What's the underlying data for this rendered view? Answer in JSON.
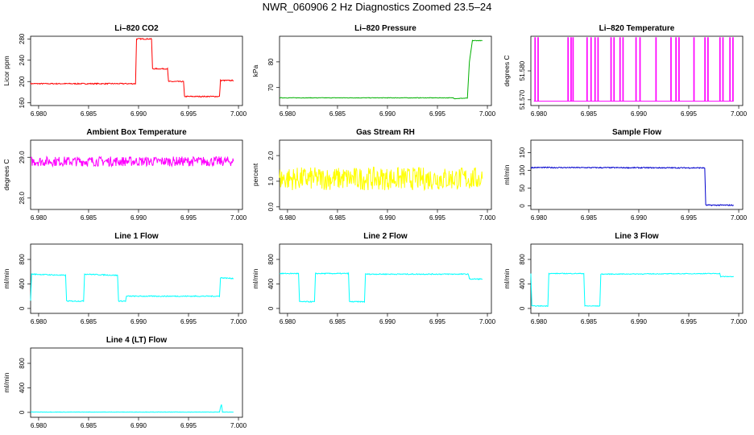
{
  "title": "NWR_060906  2 Hz Diagnostics Zoomed 23.5–24",
  "chart_data": [
    {
      "type": "line",
      "title": "Li–820 CO2",
      "ylabel": "Licor ppm",
      "color": "#ff0000",
      "xlim": [
        6.9792,
        7.0004
      ],
      "xticks": [
        "6.980",
        "6.985",
        "6.990",
        "6.995",
        "7.000"
      ],
      "ylim": [
        155,
        285
      ],
      "yticks": [
        "160",
        "200",
        "240",
        "280"
      ],
      "noise": 1,
      "series": [
        {
          "x": [
            6.9792,
            6.9897,
            6.9898,
            6.9913,
            6.9914,
            6.9929,
            6.993,
            6.9945,
            6.9946,
            6.9981,
            6.9982,
            6.9995
          ],
          "values": [
            196,
            196,
            280,
            280,
            224,
            224,
            200,
            200,
            172,
            172,
            202,
            202
          ]
        }
      ]
    },
    {
      "type": "line",
      "title": "Li–820 Pressure",
      "ylabel": "kPa",
      "color": "#00b000",
      "xlim": [
        6.9792,
        7.0004
      ],
      "xticks": [
        "6.980",
        "6.985",
        "6.990",
        "6.995",
        "7.000"
      ],
      "ylim": [
        63,
        90
      ],
      "yticks": [
        "70",
        "80"
      ],
      "noise": 0.1,
      "series": [
        {
          "x": [
            6.9792,
            6.9966,
            6.9967,
            6.998,
            6.9982,
            6.9985,
            6.9995
          ],
          "values": [
            66,
            66,
            65.7,
            65.9,
            80,
            88.3,
            88.3
          ]
        }
      ]
    },
    {
      "type": "line",
      "title": "Li–820 Temperature",
      "ylabel": "degrees C",
      "color": "#ff00ff",
      "xlim": [
        6.9792,
        7.0004
      ],
      "xticks": [
        "6.980",
        "6.985",
        "6.990",
        "6.995",
        "7.000"
      ],
      "ylim": [
        51.568,
        51.592
      ],
      "yticks": [
        "51.570",
        "51.580"
      ],
      "tick_values": [
        51.57,
        51.58
      ],
      "noise": 0,
      "spikes": {
        "base": 51.5695,
        "top": 51.5915,
        "x": [
          6.9796,
          6.9799,
          6.9829,
          6.9832,
          6.9834,
          6.9848,
          6.9852,
          6.9856,
          6.9859,
          6.9872,
          6.9875,
          6.9881,
          6.9884,
          6.9897,
          6.9901,
          6.9917,
          6.9932,
          6.9937,
          6.994,
          6.9955,
          6.9966,
          6.9969,
          6.9981,
          6.9984,
          6.9991,
          6.9994
        ]
      }
    },
    {
      "type": "line",
      "title": "Ambient Box Temperature",
      "ylabel": "degrees C",
      "color": "#ff00ff",
      "xlim": [
        6.9792,
        7.0004
      ],
      "xticks": [
        "6.980",
        "6.985",
        "6.990",
        "6.995",
        "7.000"
      ],
      "ylim": [
        27.72,
        29.42
      ],
      "yticks": [
        "28.0",
        "29.0"
      ],
      "noise": 0.12,
      "series": [
        {
          "x": [
            6.9792,
            6.9995
          ],
          "values": [
            28.9,
            28.9
          ]
        }
      ]
    },
    {
      "type": "line",
      "title": "Gas Stream RH",
      "ylabel": "percent",
      "color": "#ffff00",
      "xlim": [
        6.9792,
        7.0004
      ],
      "xticks": [
        "6.980",
        "6.985",
        "6.990",
        "6.995",
        "7.000"
      ],
      "ylim": [
        -0.1,
        2.6
      ],
      "yticks": [
        "0.0",
        "1.0",
        "2.0"
      ],
      "noise": 0.45,
      "series": [
        {
          "x": [
            6.9792,
            6.9995
          ],
          "values": [
            1.1,
            1.1
          ]
        }
      ]
    },
    {
      "type": "line",
      "title": "Sample Flow",
      "ylabel": "ml/min",
      "color": "#0000cd",
      "xlim": [
        6.9792,
        7.0004
      ],
      "xticks": [
        "6.980",
        "6.985",
        "6.990",
        "6.995",
        "7.000"
      ],
      "ylim": [
        -10,
        185
      ],
      "yticks": [
        "0",
        "50",
        "100",
        "150"
      ],
      "noise": 1.5,
      "series": [
        {
          "x": [
            6.9792,
            6.9966,
            6.9967,
            6.9995
          ],
          "values": [
            108,
            107,
            2,
            2
          ]
        }
      ]
    },
    {
      "type": "line",
      "title": "Line 1 Flow",
      "ylabel": "ml/min",
      "color": "#00ffff",
      "xlim": [
        6.9792,
        7.0004
      ],
      "xticks": [
        "6.980",
        "6.985",
        "6.990",
        "6.995",
        "7.000"
      ],
      "ylim": [
        -80,
        1050
      ],
      "yticks": [
        "0",
        "400",
        "800"
      ],
      "noise": 8,
      "series": [
        {
          "x": [
            6.9792,
            6.9793,
            6.9827,
            6.9828,
            6.9845,
            6.9846,
            6.9879,
            6.988,
            6.9887,
            6.9888,
            6.9981,
            6.9982,
            6.9995
          ],
          "values": [
            120,
            560,
            540,
            120,
            120,
            560,
            540,
            120,
            120,
            200,
            200,
            500,
            490
          ]
        }
      ]
    },
    {
      "type": "line",
      "title": "Line 2 Flow",
      "ylabel": "ml/min",
      "color": "#00ffff",
      "xlim": [
        6.9792,
        7.0004
      ],
      "xticks": [
        "6.980",
        "6.985",
        "6.990",
        "6.995",
        "7.000"
      ],
      "ylim": [
        -80,
        1050
      ],
      "yticks": [
        "0",
        "400",
        "800"
      ],
      "noise": 8,
      "series": [
        {
          "x": [
            6.9792,
            6.9811,
            6.9812,
            6.9827,
            6.9828,
            6.9861,
            6.9862,
            6.9877,
            6.9878,
            6.9981,
            6.9982,
            6.9995
          ],
          "values": [
            570,
            570,
            110,
            110,
            570,
            570,
            110,
            110,
            560,
            560,
            480,
            480
          ]
        }
      ]
    },
    {
      "type": "line",
      "title": "Line 3 Flow",
      "ylabel": "ml/min",
      "color": "#00ffff",
      "xlim": [
        6.9792,
        7.0004
      ],
      "xticks": [
        "6.980",
        "6.985",
        "6.990",
        "6.995",
        "7.000"
      ],
      "ylim": [
        -80,
        1050
      ],
      "yticks": [
        "0",
        "400",
        "800"
      ],
      "noise": 6,
      "series": [
        {
          "x": [
            6.9792,
            6.9793,
            6.9809,
            6.981,
            6.9845,
            6.9846,
            6.9861,
            6.9862,
            6.9981,
            6.9982,
            6.9995
          ],
          "values": [
            570,
            40,
            40,
            570,
            570,
            40,
            40,
            560,
            570,
            520,
            520
          ]
        }
      ]
    },
    {
      "type": "line",
      "title": "Line 4 (LT) Flow",
      "ylabel": "ml/min",
      "color": "#00ffff",
      "xlim": [
        6.9792,
        7.0004
      ],
      "xticks": [
        "6.980",
        "6.985",
        "6.990",
        "6.995",
        "7.000"
      ],
      "ylim": [
        -80,
        1050
      ],
      "yticks": [
        "0",
        "400",
        "800"
      ],
      "noise": 3,
      "series": [
        {
          "x": [
            6.9792,
            6.9981,
            6.9982,
            6.9983,
            6.9984,
            6.9995
          ],
          "values": [
            5,
            5,
            80,
            130,
            5,
            5
          ]
        }
      ]
    }
  ]
}
